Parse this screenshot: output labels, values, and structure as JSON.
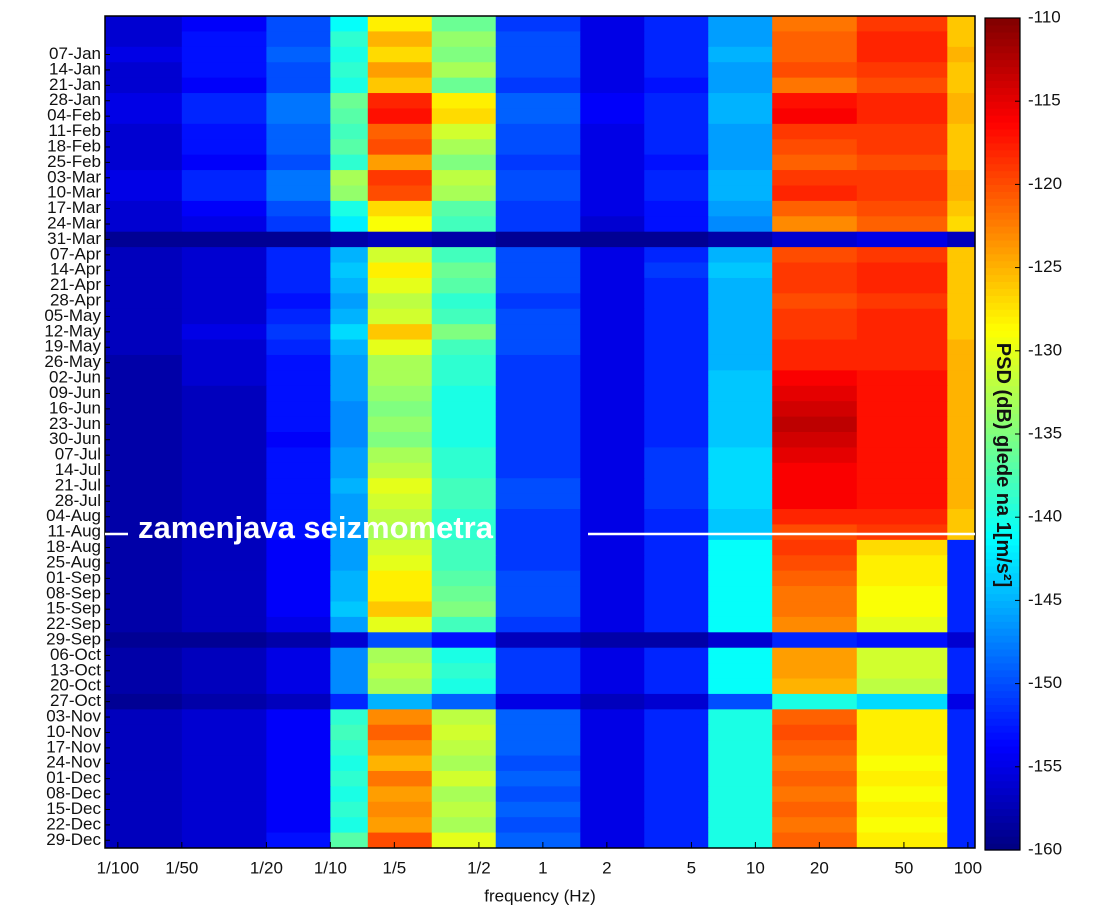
{
  "chart_data": {
    "type": "heatmap",
    "xlabel": "frequency (Hz)",
    "annotation": "zamenjava seizmometra",
    "colorbar_label": "PSD (dB) glede na 1[m/s²]",
    "colormap": "jet",
    "xscale": "log",
    "xlim": [
      0.0087,
      108
    ],
    "xticks": [
      {
        "value": 0.01,
        "label": "1/100"
      },
      {
        "value": 0.02,
        "label": "1/50"
      },
      {
        "value": 0.05,
        "label": "1/20"
      },
      {
        "value": 0.1,
        "label": "1/10"
      },
      {
        "value": 0.2,
        "label": "1/5"
      },
      {
        "value": 0.5,
        "label": "1/2"
      },
      1,
      2,
      5,
      10,
      20,
      50,
      100
    ],
    "clim": [
      -160,
      -110
    ],
    "cticks": [
      -110,
      -115,
      -120,
      -125,
      -130,
      -135,
      -140,
      -145,
      -150,
      -155,
      -160
    ],
    "bins": [
      0.0087,
      0.02,
      0.05,
      0.1,
      0.15,
      0.3,
      0.6,
      1.5,
      3,
      6,
      12,
      30,
      80,
      108
    ],
    "categories": [
      null,
      null,
      "07-Jan",
      "14-Jan",
      "21-Jan",
      "28-Jan",
      "04-Feb",
      "11-Feb",
      "18-Feb",
      "25-Feb",
      "03-Mar",
      "10-Mar",
      "17-Mar",
      "24-Mar",
      "31-Mar",
      "07-Apr",
      "14-Apr",
      "21-Apr",
      "28-Apr",
      "05-May",
      "12-May",
      "19-May",
      "26-May",
      "02-Jun",
      "09-Jun",
      "16-Jun",
      "23-Jun",
      "30-Jun",
      "07-Jul",
      "14-Jul",
      "21-Jul",
      "28-Jul",
      "04-Aug",
      "11-Aug",
      "18-Aug",
      "25-Aug",
      "01-Sep",
      "08-Sep",
      "15-Sep",
      "22-Sep",
      "29-Sep",
      "06-Oct",
      "13-Oct",
      "20-Oct",
      "27-Oct",
      "03-Nov",
      "10-Nov",
      "17-Nov",
      "24-Nov",
      "01-Dec",
      "08-Dec",
      "15-Dec",
      "22-Dec",
      "29-Dec"
    ],
    "values": [
      [
        -156,
        -154,
        -150,
        -141,
        -128,
        -136,
        -151,
        -155,
        -152,
        -146,
        -122,
        -119,
        -126
      ],
      [
        -156,
        -153,
        -150,
        -139,
        -125,
        -134,
        -150,
        -155,
        -152,
        -146,
        -121,
        -118,
        -126
      ],
      [
        -155,
        -153,
        -149,
        -140,
        -127,
        -135,
        -150,
        -155,
        -152,
        -145,
        -121,
        -118,
        -125
      ],
      [
        -156,
        -153,
        -150,
        -139,
        -124,
        -133,
        -150,
        -155,
        -152,
        -146,
        -120,
        -119,
        -126
      ],
      [
        -156,
        -154,
        -150,
        -140,
        -126,
        -136,
        -151,
        -155,
        -153,
        -146,
        -122,
        -120,
        -126
      ],
      [
        -155,
        -152,
        -148,
        -136,
        -118,
        -128,
        -149,
        -154,
        -152,
        -145,
        -117,
        -118,
        -125
      ],
      [
        -155,
        -152,
        -148,
        -137,
        -117,
        -127,
        -149,
        -154,
        -152,
        -145,
        -116,
        -118,
        -125
      ],
      [
        -156,
        -153,
        -149,
        -138,
        -121,
        -131,
        -150,
        -155,
        -152,
        -146,
        -119,
        -119,
        -126
      ],
      [
        -156,
        -153,
        -149,
        -137,
        -120,
        -133,
        -150,
        -155,
        -152,
        -146,
        -120,
        -119,
        -126
      ],
      [
        -156,
        -154,
        -150,
        -139,
        -124,
        -135,
        -151,
        -155,
        -153,
        -146,
        -121,
        -120,
        -126
      ],
      [
        -155,
        -152,
        -148,
        -133,
        -119,
        -132,
        -150,
        -155,
        -152,
        -145,
        -119,
        -119,
        -125
      ],
      [
        -155,
        -152,
        -148,
        -134,
        -120,
        -133,
        -150,
        -155,
        -152,
        -145,
        -118,
        -119,
        -125
      ],
      [
        -156,
        -154,
        -150,
        -140,
        -127,
        -137,
        -151,
        -155,
        -153,
        -146,
        -121,
        -120,
        -126
      ],
      [
        -156,
        -155,
        -151,
        -142,
        -129,
        -138,
        -151,
        -156,
        -153,
        -147,
        -123,
        -121,
        -127
      ],
      [
        -159,
        -159,
        -159,
        -158,
        -157,
        -158,
        -159,
        -159,
        -159,
        -158,
        -156,
        -155,
        -157
      ],
      [
        -157,
        -156,
        -152,
        -145,
        -131,
        -138,
        -150,
        -155,
        -152,
        -145,
        -120,
        -119,
        -126
      ],
      [
        -157,
        -156,
        -152,
        -144,
        -128,
        -136,
        -150,
        -155,
        -151,
        -144,
        -119,
        -118,
        -126
      ],
      [
        -157,
        -156,
        -152,
        -145,
        -130,
        -137,
        -150,
        -155,
        -152,
        -145,
        -119,
        -118,
        -126
      ],
      [
        -157,
        -156,
        -153,
        -146,
        -132,
        -139,
        -151,
        -155,
        -152,
        -145,
        -120,
        -119,
        -126
      ],
      [
        -157,
        -156,
        -152,
        -145,
        -131,
        -138,
        -150,
        -155,
        -152,
        -145,
        -119,
        -118,
        -126
      ],
      [
        -157,
        -155,
        -151,
        -143,
        -126,
        -135,
        -150,
        -155,
        -152,
        -145,
        -119,
        -118,
        -126
      ],
      [
        -157,
        -156,
        -152,
        -145,
        -130,
        -138,
        -150,
        -155,
        -152,
        -145,
        -118,
        -118,
        -125
      ],
      [
        -158,
        -156,
        -153,
        -146,
        -133,
        -139,
        -151,
        -155,
        -152,
        -145,
        -118,
        -118,
        -125
      ],
      [
        -158,
        -156,
        -153,
        -146,
        -133,
        -139,
        -151,
        -155,
        -152,
        -144,
        -116,
        -117,
        -125
      ],
      [
        -158,
        -157,
        -153,
        -146,
        -134,
        -140,
        -151,
        -155,
        -152,
        -144,
        -115,
        -117,
        -125
      ],
      [
        -158,
        -157,
        -153,
        -147,
        -135,
        -140,
        -151,
        -155,
        -152,
        -144,
        -114,
        -117,
        -125
      ],
      [
        -158,
        -157,
        -153,
        -147,
        -134,
        -140,
        -151,
        -155,
        -152,
        -144,
        -113,
        -117,
        -125
      ],
      [
        -158,
        -157,
        -154,
        -147,
        -135,
        -140,
        -151,
        -155,
        -152,
        -144,
        -114,
        -117,
        -125
      ],
      [
        -158,
        -157,
        -153,
        -146,
        -133,
        -139,
        -151,
        -155,
        -151,
        -143,
        -115,
        -117,
        -125
      ],
      [
        -158,
        -157,
        -153,
        -146,
        -132,
        -139,
        -151,
        -155,
        -151,
        -143,
        -116,
        -117,
        -125
      ],
      [
        -158,
        -157,
        -153,
        -145,
        -130,
        -138,
        -150,
        -155,
        -151,
        -143,
        -116,
        -117,
        -125
      ],
      [
        -158,
        -157,
        -153,
        -146,
        -131,
        -138,
        -150,
        -155,
        -151,
        -143,
        -116,
        -117,
        -125
      ],
      [
        -158,
        -157,
        -153,
        -146,
        -132,
        -139,
        -151,
        -155,
        -152,
        -144,
        -118,
        -118,
        -126
      ],
      [
        -158,
        -157,
        -153,
        -146,
        -133,
        -139,
        -151,
        -155,
        -152,
        -144,
        -120,
        -119,
        -126
      ],
      [
        -158,
        -157,
        -154,
        -146,
        -131,
        -138,
        -151,
        -155,
        -152,
        -141,
        -119,
        -127,
        -152
      ],
      [
        -158,
        -157,
        -154,
        -146,
        -130,
        -138,
        -151,
        -155,
        -152,
        -141,
        -120,
        -128,
        -152
      ],
      [
        -158,
        -157,
        -154,
        -145,
        -128,
        -137,
        -150,
        -155,
        -152,
        -141,
        -121,
        -128,
        -152
      ],
      [
        -158,
        -157,
        -154,
        -145,
        -128,
        -136,
        -150,
        -155,
        -152,
        -141,
        -122,
        -129,
        -152
      ],
      [
        -158,
        -157,
        -154,
        -144,
        -126,
        -135,
        -150,
        -155,
        -152,
        -141,
        -122,
        -129,
        -152
      ],
      [
        -158,
        -157,
        -155,
        -146,
        -130,
        -138,
        -151,
        -155,
        -152,
        -141,
        -123,
        -130,
        -152
      ],
      [
        -159,
        -159,
        -158,
        -156,
        -150,
        -153,
        -157,
        -158,
        -158,
        -156,
        -152,
        -153,
        -156
      ],
      [
        -158,
        -157,
        -155,
        -147,
        -133,
        -140,
        -151,
        -155,
        -152,
        -141,
        -124,
        -131,
        -152
      ],
      [
        -158,
        -157,
        -155,
        -147,
        -132,
        -139,
        -151,
        -155,
        -152,
        -141,
        -124,
        -131,
        -152
      ],
      [
        -158,
        -157,
        -155,
        -147,
        -133,
        -140,
        -151,
        -155,
        -152,
        -141,
        -125,
        -132,
        -152
      ],
      [
        -159,
        -158,
        -157,
        -152,
        -145,
        -149,
        -155,
        -157,
        -156,
        -150,
        -140,
        -143,
        -155
      ],
      [
        -157,
        -156,
        -154,
        -139,
        -123,
        -132,
        -149,
        -155,
        -152,
        -140,
        -121,
        -128,
        -152
      ],
      [
        -157,
        -156,
        -154,
        -138,
        -121,
        -131,
        -149,
        -155,
        -152,
        -140,
        -120,
        -128,
        -152
      ],
      [
        -157,
        -156,
        -154,
        -139,
        -123,
        -132,
        -149,
        -155,
        -152,
        -140,
        -121,
        -128,
        -152
      ],
      [
        -157,
        -156,
        -154,
        -140,
        -125,
        -133,
        -150,
        -155,
        -152,
        -140,
        -122,
        -129,
        -152
      ],
      [
        -157,
        -156,
        -154,
        -139,
        -122,
        -131,
        -149,
        -155,
        -152,
        -140,
        -121,
        -128,
        -152
      ],
      [
        -157,
        -156,
        -154,
        -140,
        -124,
        -133,
        -150,
        -155,
        -152,
        -140,
        -122,
        -129,
        -152
      ],
      [
        -157,
        -156,
        -154,
        -139,
        -123,
        -132,
        -149,
        -155,
        -152,
        -140,
        -121,
        -128,
        -152
      ],
      [
        -157,
        -156,
        -154,
        -140,
        -124,
        -133,
        -150,
        -155,
        -152,
        -140,
        -122,
        -129,
        -152
      ],
      [
        -157,
        -156,
        -153,
        -137,
        -120,
        -130,
        -149,
        -155,
        -152,
        -140,
        -121,
        -128,
        -152
      ]
    ]
  }
}
